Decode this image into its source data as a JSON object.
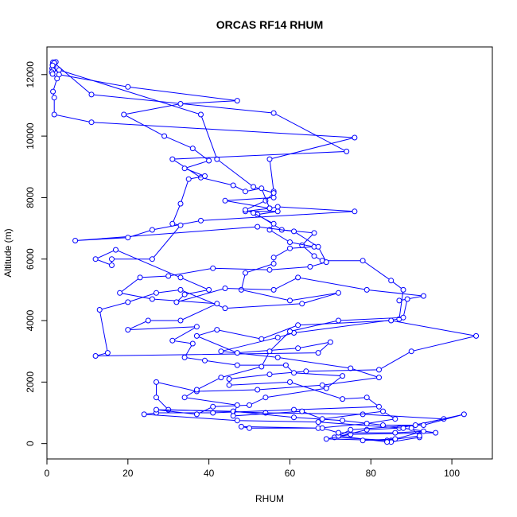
{
  "chart_data": {
    "type": "line",
    "title": "ORCAS RF14 RHUM",
    "xlabel": "RHUM",
    "ylabel": "Altitude (m)",
    "xlim": [
      0,
      110
    ],
    "ylim": [
      -500,
      12900
    ],
    "x_ticks": [
      0,
      20,
      40,
      60,
      80,
      100
    ],
    "y_ticks": [
      0,
      2000,
      4000,
      6000,
      8000,
      10000,
      12000
    ],
    "grid": false,
    "legend": "none",
    "marker": "open-circle",
    "color": "#0000ff",
    "series": [
      {
        "points": [
          [
            1.5,
            12400
          ],
          [
            2.2,
            12410
          ],
          [
            1.8,
            12380
          ],
          [
            1.4,
            12320
          ],
          [
            1.6,
            12260
          ],
          [
            1.3,
            12200
          ],
          [
            1.5,
            12140
          ],
          [
            1.2,
            12080
          ],
          [
            1.4,
            12020
          ],
          [
            2.5,
            11870
          ],
          [
            1.5,
            11450
          ],
          [
            1.8,
            11250
          ],
          [
            1.8,
            10700
          ],
          [
            11,
            10450
          ],
          [
            76,
            9950
          ],
          [
            55,
            9250
          ],
          [
            56,
            8200
          ],
          [
            56,
            8000
          ],
          [
            44,
            7900
          ],
          [
            55,
            7650
          ],
          [
            49,
            7550
          ],
          [
            57,
            7550
          ],
          [
            52,
            7450
          ],
          [
            58,
            6950
          ],
          [
            66,
            6850
          ],
          [
            63,
            6450
          ],
          [
            66,
            6100
          ],
          [
            68,
            5950
          ],
          [
            78,
            5950
          ],
          [
            85,
            5300
          ],
          [
            88,
            5000
          ],
          [
            87,
            4050
          ],
          [
            61,
            3600
          ],
          [
            57,
            3450
          ],
          [
            43,
            3000
          ],
          [
            57,
            2800
          ],
          [
            75,
            2450
          ],
          [
            82,
            2150
          ],
          [
            68,
            1900
          ],
          [
            52,
            1750
          ],
          [
            37,
            1700
          ],
          [
            27,
            2000
          ],
          [
            27,
            1500
          ],
          [
            30,
            1100
          ],
          [
            54,
            1000
          ],
          [
            78,
            950
          ],
          [
            98,
            800
          ],
          [
            87,
            500
          ],
          [
            79,
            450
          ],
          [
            71,
            200
          ],
          [
            85,
            100
          ],
          [
            85,
            50
          ],
          [
            92,
            200
          ]
        ]
      },
      {
        "points": [
          [
            3,
            12150
          ],
          [
            38,
            10700
          ],
          [
            42,
            9250
          ],
          [
            51,
            8350
          ],
          [
            56,
            8150
          ],
          [
            54,
            7900
          ],
          [
            49,
            7600
          ],
          [
            51,
            7500
          ],
          [
            56,
            7150
          ],
          [
            55,
            6950
          ],
          [
            60,
            6550
          ],
          [
            66,
            6400
          ],
          [
            60,
            6350
          ],
          [
            56,
            6050
          ],
          [
            56,
            5850
          ],
          [
            49,
            5550
          ],
          [
            48,
            5000
          ],
          [
            60,
            4650
          ],
          [
            72,
            4900
          ],
          [
            63,
            4550
          ],
          [
            44,
            4400
          ],
          [
            33,
            5000
          ],
          [
            27,
            4900
          ],
          [
            20,
            4600
          ],
          [
            13,
            4350
          ],
          [
            15,
            2950
          ],
          [
            12,
            2850
          ],
          [
            67,
            2950
          ],
          [
            70,
            3300
          ],
          [
            62,
            3100
          ],
          [
            47,
            2950
          ],
          [
            37,
            3500
          ],
          [
            42,
            3700
          ],
          [
            53,
            3400
          ],
          [
            62,
            3850
          ],
          [
            85,
            4000
          ],
          [
            106,
            3500
          ],
          [
            90,
            3000
          ],
          [
            82,
            2400
          ],
          [
            64,
            2350
          ],
          [
            55,
            2250
          ],
          [
            45,
            2100
          ],
          [
            45,
            1900
          ],
          [
            60,
            2000
          ],
          [
            73,
            1450
          ],
          [
            79,
            1500
          ],
          [
            82,
            1200
          ],
          [
            61,
            1100
          ],
          [
            41,
            1000
          ],
          [
            27,
            1000
          ],
          [
            24,
            950
          ],
          [
            47,
            750
          ],
          [
            67,
            700
          ],
          [
            88,
            500
          ],
          [
            96,
            350
          ],
          [
            75,
            300
          ],
          [
            69,
            150
          ],
          [
            84,
            100
          ],
          [
            92,
            250
          ],
          [
            90,
            500
          ]
        ]
      },
      {
        "points": [
          [
            1.8,
            12380
          ],
          [
            11,
            11350
          ],
          [
            56,
            10750
          ],
          [
            74,
            9500
          ],
          [
            31,
            9250
          ],
          [
            38,
            8650
          ],
          [
            46,
            8400
          ],
          [
            49,
            8200
          ],
          [
            53,
            8300
          ],
          [
            55,
            7650
          ],
          [
            57,
            7700
          ],
          [
            76,
            7550
          ],
          [
            38,
            7250
          ],
          [
            26,
            6950
          ],
          [
            20,
            6700
          ],
          [
            7,
            6600
          ],
          [
            52,
            7050
          ],
          [
            61,
            6900
          ],
          [
            67,
            6400
          ],
          [
            69,
            5900
          ],
          [
            65,
            5750
          ],
          [
            55,
            5650
          ],
          [
            41,
            5700
          ],
          [
            30,
            5450
          ],
          [
            23,
            5400
          ],
          [
            18,
            4900
          ],
          [
            26,
            4700
          ],
          [
            42,
            4550
          ],
          [
            33,
            4000
          ],
          [
            25,
            4000
          ],
          [
            20,
            3700
          ],
          [
            37,
            3800
          ],
          [
            31,
            3350
          ],
          [
            36,
            3250
          ],
          [
            34,
            2800
          ],
          [
            39,
            2700
          ],
          [
            47,
            2550
          ],
          [
            59,
            2550
          ],
          [
            61,
            2300
          ],
          [
            73,
            2200
          ],
          [
            69,
            1800
          ],
          [
            54,
            1500
          ],
          [
            50,
            1250
          ],
          [
            41,
            1200
          ],
          [
            37,
            950
          ],
          [
            27,
            1100
          ],
          [
            46,
            1050
          ],
          [
            61,
            850
          ],
          [
            73,
            750
          ],
          [
            83,
            600
          ],
          [
            93,
            600
          ],
          [
            103,
            950
          ],
          [
            91,
            600
          ],
          [
            75,
            450
          ],
          [
            72,
            250
          ],
          [
            84,
            50
          ]
        ]
      },
      {
        "points": [
          [
            1.4,
            12300
          ],
          [
            3,
            12000
          ],
          [
            20,
            11600
          ],
          [
            47,
            11150
          ],
          [
            33,
            11050
          ],
          [
            19,
            10700
          ],
          [
            29,
            10000
          ],
          [
            36,
            9600
          ],
          [
            40,
            9200
          ],
          [
            34,
            8950
          ],
          [
            39,
            8700
          ],
          [
            35,
            8600
          ],
          [
            33,
            7800
          ],
          [
            31,
            7150
          ],
          [
            33,
            7100
          ],
          [
            26,
            6000
          ],
          [
            16,
            6000
          ],
          [
            16,
            5800
          ],
          [
            12,
            6000
          ],
          [
            17,
            6300
          ],
          [
            33,
            5400
          ],
          [
            40,
            5000
          ],
          [
            34,
            4850
          ],
          [
            32,
            4600
          ],
          [
            44,
            5050
          ],
          [
            56,
            5000
          ],
          [
            62,
            5400
          ],
          [
            79,
            5000
          ],
          [
            93,
            4800
          ],
          [
            87,
            4650
          ],
          [
            89,
            4700
          ],
          [
            88,
            4100
          ],
          [
            72,
            4000
          ],
          [
            60,
            3650
          ],
          [
            55,
            3000
          ],
          [
            53,
            2500
          ],
          [
            43,
            2150
          ],
          [
            37,
            1750
          ],
          [
            34,
            1500
          ],
          [
            47,
            1250
          ],
          [
            46,
            900
          ],
          [
            63,
            1050
          ],
          [
            68,
            800
          ],
          [
            83,
            1050
          ],
          [
            86,
            800
          ],
          [
            79,
            650
          ],
          [
            67,
            500
          ],
          [
            50,
            500
          ],
          [
            48,
            550
          ],
          [
            68,
            500
          ],
          [
            72,
            350
          ],
          [
            86,
            350
          ],
          [
            93,
            400
          ],
          [
            86,
            150
          ],
          [
            78,
            100
          ]
        ]
      }
    ]
  }
}
